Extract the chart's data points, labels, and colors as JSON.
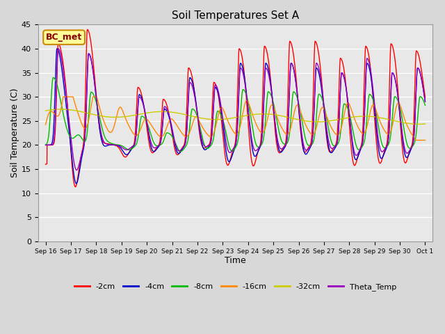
{
  "title": "Soil Temperatures Set A",
  "xlabel": "Time",
  "ylabel": "Soil Temperature (C)",
  "ylim": [
    0,
    45
  ],
  "yticks": [
    0,
    5,
    10,
    15,
    20,
    25,
    30,
    35,
    40,
    45
  ],
  "background_color": "#d8d8d8",
  "plot_bg_color": "#e8e8e8",
  "grid_color": "#ffffff",
  "series_colors": {
    "-2cm": "#ff0000",
    "-4cm": "#0000cc",
    "-8cm": "#00bb00",
    "-16cm": "#ff8800",
    "-32cm": "#cccc00",
    "Theta_Temp": "#9900bb"
  },
  "annotation_box": {
    "text": "BC_met",
    "facecolor": "#ffff99",
    "edgecolor": "#cc8800",
    "fontsize": 9
  },
  "figsize": [
    6.4,
    4.8
  ],
  "dpi": 100
}
